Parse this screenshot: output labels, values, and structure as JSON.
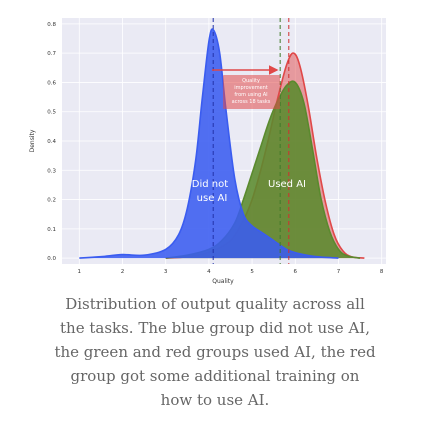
{
  "chart_data": {
    "type": "area",
    "xlabel": "Quality",
    "ylabel": "Density",
    "xlim": [
      0.6,
      8.1
    ],
    "ylim": [
      -0.02,
      0.82
    ],
    "x_ticks": [
      "1",
      "2",
      "3",
      "4",
      "5",
      "6",
      "7",
      "8"
    ],
    "y_ticks": [
      "0.0",
      "0.1",
      "0.2",
      "0.3",
      "0.4",
      "0.5",
      "0.6",
      "0.7",
      "0.8"
    ],
    "grid": true,
    "series": [
      {
        "name": "Did not use AI",
        "color": "#3a5cf0",
        "mean": 4.1,
        "x": [
          1,
          1.5,
          2,
          2.5,
          3,
          3.3,
          3.5,
          3.7,
          3.85,
          4.0,
          4.1,
          4.25,
          4.4,
          4.6,
          4.8,
          5.0,
          5.2,
          5.5,
          5.8,
          6.1,
          6.5,
          7.0
        ],
        "y": [
          0.0,
          0.005,
          0.012,
          0.01,
          0.03,
          0.08,
          0.17,
          0.34,
          0.55,
          0.74,
          0.78,
          0.7,
          0.5,
          0.27,
          0.15,
          0.11,
          0.09,
          0.06,
          0.03,
          0.015,
          0.005,
          0.0
        ]
      },
      {
        "name": "Used AI (green group)",
        "color": "#5a8a2e",
        "mean": 5.65,
        "x": [
          3.0,
          3.5,
          4.0,
          4.3,
          4.6,
          4.8,
          5.0,
          5.2,
          5.4,
          5.6,
          5.8,
          6.0,
          6.2,
          6.4,
          6.6,
          6.8,
          7.0,
          7.2,
          7.5
        ],
        "y": [
          0.0,
          0.01,
          0.03,
          0.06,
          0.12,
          0.2,
          0.29,
          0.38,
          0.47,
          0.54,
          0.59,
          0.6,
          0.53,
          0.37,
          0.2,
          0.09,
          0.03,
          0.008,
          0.0
        ]
      },
      {
        "name": "Used AI (red group, extra training)",
        "color": "#e04848",
        "mean": 5.85,
        "x": [
          3.0,
          3.5,
          4.0,
          4.5,
          4.8,
          5.0,
          5.2,
          5.4,
          5.6,
          5.8,
          5.95,
          6.1,
          6.3,
          6.5,
          6.7,
          6.9,
          7.1,
          7.3,
          7.6
        ],
        "y": [
          0.0,
          0.005,
          0.02,
          0.06,
          0.13,
          0.2,
          0.3,
          0.42,
          0.55,
          0.66,
          0.7,
          0.66,
          0.52,
          0.34,
          0.19,
          0.08,
          0.025,
          0.005,
          0.0
        ]
      }
    ],
    "labels": {
      "blue": [
        "Did not",
        "use AI"
      ],
      "ai": "Used AI"
    },
    "annotation": [
      "Quality",
      "improvement",
      "from using AI",
      "across 18 tasks"
    ]
  },
  "caption": [
    "Distribution of output quality across all",
    "the tasks. The blue group did not use AI,",
    "the green and red groups used AI, the red",
    "group got some additional training on",
    "how to use AI."
  ]
}
